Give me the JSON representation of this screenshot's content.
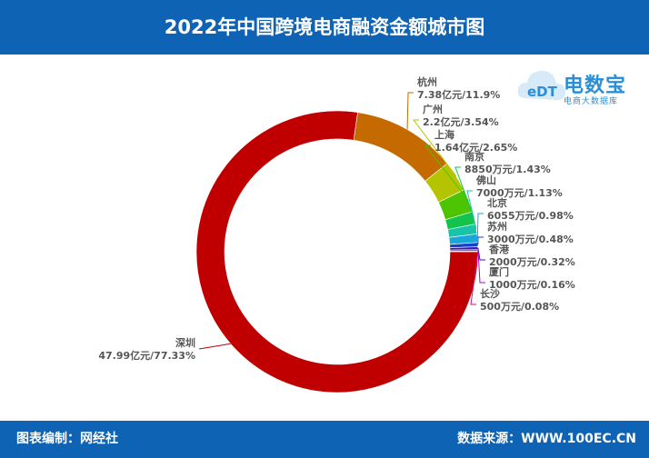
{
  "header": {
    "title": "2022年中国跨境电商融资金额城市图"
  },
  "footer": {
    "left": "图表编制：网经社",
    "right": "数据来源：WWW.100EC.CN"
  },
  "logo": {
    "main_text": "电数宝",
    "sub_text": "电商大数据库",
    "badge": "eDT"
  },
  "chart_data": {
    "type": "pie",
    "style": "donut",
    "slices": [
      {
        "name": "深圳",
        "value_label": "47.99亿元",
        "percent_label": "77.33%",
        "percent": 77.33,
        "color": "#c00000"
      },
      {
        "name": "杭州",
        "value_label": "7.38亿元",
        "percent_label": "11.9%",
        "percent": 11.9,
        "color": "#c46a00"
      },
      {
        "name": "广州",
        "value_label": "2.2亿元",
        "percent_label": "3.54%",
        "percent": 3.54,
        "color": "#b5c400"
      },
      {
        "name": "上海",
        "value_label": "1.64亿元",
        "percent_label": "2.65%",
        "percent": 2.65,
        "color": "#4cc400"
      },
      {
        "name": "南京",
        "value_label": "8850万元",
        "percent_label": "1.43%",
        "percent": 1.43,
        "color": "#12c44c"
      },
      {
        "name": "佛山",
        "value_label": "7000万元",
        "percent_label": "1.13%",
        "percent": 1.13,
        "color": "#18c4a8"
      },
      {
        "name": "北京",
        "value_label": "6055万元",
        "percent_label": "0.98%",
        "percent": 0.98,
        "color": "#1aa6d8"
      },
      {
        "name": "苏州",
        "value_label": "3000万元",
        "percent_label": "0.48%",
        "percent": 0.48,
        "color": "#1444c4"
      },
      {
        "name": "香港",
        "value_label": "2000万元",
        "percent_label": "0.32%",
        "percent": 0.32,
        "color": "#3a12c4"
      },
      {
        "name": "厦门",
        "value_label": "1000万元",
        "percent_label": "0.16%",
        "percent": 0.16,
        "color": "#9a12c4"
      },
      {
        "name": "长沙",
        "value_label": "500万元",
        "percent_label": "0.08%",
        "percent": 0.08,
        "color": "#d4127a"
      }
    ]
  }
}
